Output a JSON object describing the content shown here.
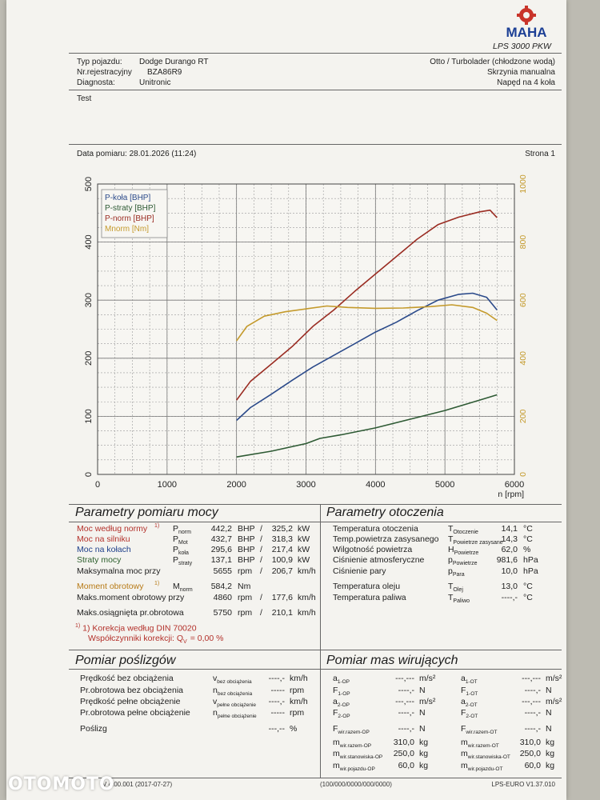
{
  "header": {
    "brand": "MAHA",
    "model": "LPS 3000 PKW",
    "vehicle_type_label": "Typ pojazdu:",
    "vehicle_type": "Dodge Durango RT",
    "registration_label": "Nr.rejestracyjny",
    "registration": "BZA86R9",
    "diagnosis_label": "Diagnosta:",
    "diagnosis": "Unitronic",
    "engine": "Otto / Turbolader (chłodzone wodą)",
    "gearbox": "Skrzynia manualna",
    "drive": "Napęd na 4 koła",
    "note": "Test",
    "date_label": "Data pomiaru: 28.01.2026 (11:24)",
    "page": "Strona 1"
  },
  "chart_data": {
    "type": "line",
    "x_unit_label": "n [rpm]",
    "xlim": [
      0,
      6000
    ],
    "x_ticks": [
      "0",
      "1000",
      "2000",
      "3000",
      "4000",
      "5000",
      "6000"
    ],
    "ylim_left": [
      0,
      500
    ],
    "y_left_ticks": [
      "0",
      "100",
      "200",
      "300",
      "400",
      "500"
    ],
    "ylim_right": [
      0,
      1000
    ],
    "y_right_ticks": [
      "0",
      "200",
      "400",
      "600",
      "800",
      "1000"
    ],
    "legend": [
      "P-koła [BHP]",
      "P-straty [BHP]",
      "P-norm [BHP]",
      "Mnorm [Nm]"
    ],
    "legend_placement": "top-left",
    "grid": true,
    "series": [
      {
        "name": "P-koła [BHP]",
        "axis": "left",
        "color": "#2b4a8a",
        "x": [
          2000,
          2200,
          2500,
          2800,
          3100,
          3400,
          3700,
          4000,
          4300,
          4600,
          4900,
          5200,
          5400,
          5600,
          5750
        ],
        "y": [
          93,
          115,
          138,
          162,
          185,
          205,
          225,
          245,
          262,
          282,
          300,
          310,
          312,
          305,
          283
        ]
      },
      {
        "name": "P-straty [BHP]",
        "axis": "left",
        "color": "#2e5a34",
        "x": [
          2000,
          2500,
          3000,
          3200,
          3500,
          4000,
          4500,
          5000,
          5500,
          5750
        ],
        "y": [
          30,
          40,
          53,
          62,
          68,
          80,
          95,
          110,
          128,
          137
        ]
      },
      {
        "name": "P-norm [BHP]",
        "axis": "left",
        "color": "#9a2c22",
        "x": [
          2000,
          2200,
          2500,
          2800,
          3100,
          3400,
          3700,
          4000,
          4300,
          4600,
          4900,
          5200,
          5500,
          5650,
          5750
        ],
        "y": [
          128,
          160,
          190,
          220,
          255,
          283,
          315,
          345,
          375,
          405,
          430,
          443,
          452,
          455,
          442
        ]
      },
      {
        "name": "Mnorm [Nm]",
        "axis": "right",
        "color": "#c49a2c",
        "x": [
          2000,
          2150,
          2400,
          2700,
          3000,
          3300,
          3600,
          4000,
          4400,
          4800,
          5100,
          5400,
          5600,
          5750
        ],
        "y": [
          460,
          510,
          545,
          560,
          570,
          580,
          575,
          572,
          573,
          578,
          584,
          575,
          555,
          530
        ]
      }
    ]
  },
  "power": {
    "title": "Parametry pomiaru mocy",
    "rows": [
      {
        "label": "Moc według normy",
        "sup": "1)",
        "sym": "P",
        "sub": "norm",
        "v1": "442,2",
        "u1": "BHP",
        "v2": "325,2",
        "u2": "kW"
      },
      {
        "label": "Moc na silniku",
        "sup": "",
        "sym": "P",
        "sub": "Mot",
        "v1": "432,7",
        "u1": "BHP",
        "v2": "318,3",
        "u2": "kW"
      },
      {
        "label": "Moc na kołach",
        "sup": "",
        "sym": "P",
        "sub": "koła",
        "v1": "295,6",
        "u1": "BHP",
        "v2": "217,4",
        "u2": "kW"
      },
      {
        "label": "Straty mocy",
        "sup": "",
        "sym": "P",
        "sub": "straty",
        "v1": "137,1",
        "u1": "BHP",
        "v2": "100,9",
        "u2": "kW"
      },
      {
        "label": "Maksymalna moc przy",
        "sup": "",
        "sym": "",
        "sub": "",
        "v1": "5655",
        "u1": "rpm",
        "v2": "206,7",
        "u2": "km/h"
      },
      {
        "label": "Moment obrotowy",
        "sup": "1)",
        "sym": "M",
        "sub": "norm",
        "v1": "584,2",
        "u1": "Nm",
        "v2": "",
        "u2": ""
      },
      {
        "label": "Maks.moment obrotowy przy",
        "sup": "",
        "sym": "",
        "sub": "",
        "v1": "4860",
        "u1": "rpm",
        "v2": "177,6",
        "u2": "km/h"
      },
      {
        "label": "Maks.osiągnięta pr.obrotowa",
        "sup": "",
        "sym": "",
        "sub": "",
        "v1": "5750",
        "u1": "rpm",
        "v2": "210,1",
        "u2": "km/h"
      }
    ],
    "footnote1": "1) Korekcja według DIN 70020",
    "footnote2": "Współczynniki korekcji: Q",
    "footnote2_sub": "V",
    "footnote2_val": "= 0,00 %"
  },
  "environment": {
    "title": "Parametry otoczenia",
    "rows": [
      {
        "label": "Temperatura otoczenia",
        "sym": "T",
        "sub": "Otoczenie",
        "val": "14,1",
        "unit": "°C"
      },
      {
        "label": "Temp.powietrza zasysanego",
        "sym": "T",
        "sub": "Powietrze zasysane",
        "val": "14,3",
        "unit": "°C"
      },
      {
        "label": "Wilgotność powietrza",
        "sym": "H",
        "sub": "Powietrze",
        "val": "62,0",
        "unit": "%"
      },
      {
        "label": "Ciśnienie atmosferyczne",
        "sym": "p",
        "sub": "Powietrze",
        "val": "981,6",
        "unit": "hPa"
      },
      {
        "label": "Ciśnienie pary",
        "sym": "p",
        "sub": "Para",
        "val": "10,0",
        "unit": "hPa"
      },
      {
        "label": "Temperatura oleju",
        "sym": "T",
        "sub": "Olej",
        "val": "13,0",
        "unit": "°C"
      },
      {
        "label": "Temperatura paliwa",
        "sym": "T",
        "sub": "Paliwo",
        "val": "----,-",
        "unit": "°C"
      }
    ]
  },
  "slip": {
    "title": "Pomiar poślizgów",
    "rows": [
      {
        "label": "Prędkość bez obciążenia",
        "sym": "v",
        "sub": "bez obciążenia",
        "val": "----,-",
        "unit": "km/h"
      },
      {
        "label": "Pr.obrotowa bez obciążenia",
        "sym": "n",
        "sub": "bez obciążenia",
        "val": "-----",
        "unit": "rpm"
      },
      {
        "label": "Prędkość pełne obciążenie",
        "sym": "v",
        "sub": "pełne obciążenie",
        "val": "----,-",
        "unit": "km/h"
      },
      {
        "label": "Pr.obrotowa pełne obciążenie",
        "sym": "n",
        "sub": "pełne obciążenie",
        "val": "-----",
        "unit": "rpm"
      },
      {
        "label": "Poślizg",
        "sym": "",
        "sub": "",
        "val": "---,--",
        "unit": "%"
      }
    ]
  },
  "mass": {
    "title": "Pomiar mas wirujących",
    "left": [
      {
        "sym": "a",
        "sub": "1-OP",
        "val": "---,---",
        "unit": "m/s²"
      },
      {
        "sym": "F",
        "sub": "1-OP",
        "val": "----,-",
        "unit": "N"
      },
      {
        "sym": "a",
        "sub": "2-OP",
        "val": "---,---",
        "unit": "m/s²"
      },
      {
        "sym": "F",
        "sub": "2-OP",
        "val": "----,-",
        "unit": "N"
      },
      {
        "sym": "F",
        "sub": "wir.razem-OP",
        "val": "----,-",
        "unit": "N"
      },
      {
        "sym": "m",
        "sub": "wir.razem-OP",
        "val": "310,0",
        "unit": "kg"
      },
      {
        "sym": "m",
        "sub": "wir.stanowiska-OP",
        "val": "250,0",
        "unit": "kg"
      },
      {
        "sym": "m",
        "sub": "wir.pojazdu-OP",
        "val": "60,0",
        "unit": "kg"
      }
    ],
    "right": [
      {
        "sym": "a",
        "sub": "1-OT",
        "val": "---,---",
        "unit": "m/s²"
      },
      {
        "sym": "F",
        "sub": "1-OT",
        "val": "----,-",
        "unit": "N"
      },
      {
        "sym": "a",
        "sub": "2-OT",
        "val": "---,---",
        "unit": "m/s²"
      },
      {
        "sym": "F",
        "sub": "2-OT",
        "val": "----,-",
        "unit": "N"
      },
      {
        "sym": "F",
        "sub": "wir.razem-OT",
        "val": "----,-",
        "unit": "N"
      },
      {
        "sym": "m",
        "sub": "wir.razem-OT",
        "val": "310,0",
        "unit": "kg"
      },
      {
        "sym": "m",
        "sub": "wir.stanowiska-OT",
        "val": "250,0",
        "unit": "kg"
      },
      {
        "sym": "m",
        "sub": "wir.pojazdu-OT",
        "val": "60,0",
        "unit": "kg"
      }
    ]
  },
  "footer": {
    "version": "V 4.00.001 (2017-07-27)",
    "code": "(100/000/0000/000/0000)",
    "euro": "LPS-EURO V1.37.010"
  },
  "watermark": "OTOMOTO"
}
